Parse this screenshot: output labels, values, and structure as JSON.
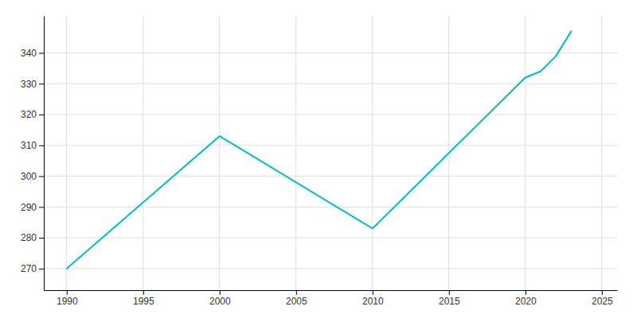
{
  "chart_data": {
    "type": "line",
    "x": [
      1990,
      2000,
      2010,
      2020,
      2021,
      2022,
      2023
    ],
    "values": [
      270,
      313,
      283,
      332,
      334,
      339,
      347
    ],
    "color": "#00BFBF",
    "xlim": [
      1988.5,
      2026
    ],
    "ylim": [
      263,
      352
    ],
    "xticks": [
      1990,
      1995,
      2000,
      2005,
      2010,
      2015,
      2020,
      2025
    ],
    "yticks": [
      270,
      280,
      290,
      300,
      310,
      320,
      330,
      340
    ],
    "grid": true
  }
}
